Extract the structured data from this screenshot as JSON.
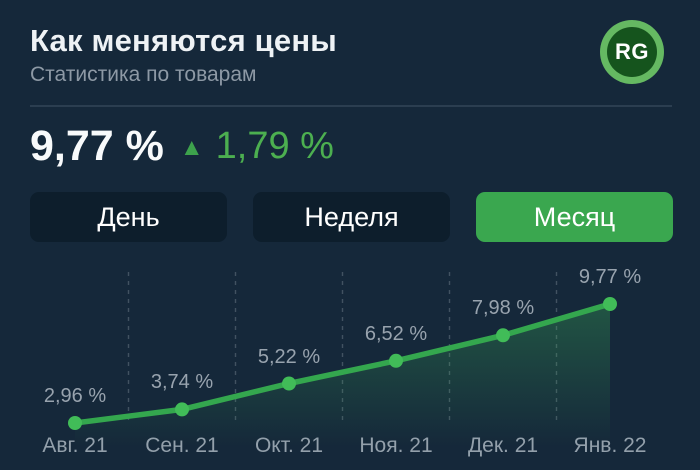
{
  "header": {
    "title": "Как меняются цены",
    "subtitle": "Статистика по товарам",
    "logo_text": "RG"
  },
  "summary": {
    "total_value": "9,77 %",
    "delta_value": "1,79 %",
    "delta_direction": "up",
    "up_arrow_icon": "▲"
  },
  "tabs": [
    {
      "label": "День",
      "active": false
    },
    {
      "label": "Неделя",
      "active": false
    },
    {
      "label": "Месяц",
      "active": true
    }
  ],
  "chart_data": {
    "type": "line",
    "title": "Как меняются цены",
    "xlabel": "",
    "ylabel": "",
    "categories": [
      "Авг. 21",
      "Сен. 21",
      "Окт. 21",
      "Ноя. 21",
      "Дек. 21",
      "Янв. 22"
    ],
    "values": [
      2.96,
      3.74,
      5.22,
      6.52,
      7.98,
      9.77
    ],
    "point_labels": [
      "2,96 %",
      "3,74 %",
      "5,22 %",
      "6,52 %",
      "7,98 %",
      "9,77 %"
    ],
    "ylim": [
      2.5,
      10.5
    ],
    "grid": "dashed vertical lines between categories",
    "legend_position": "none",
    "area_fill": "vertical green gradient fading down"
  },
  "colors": {
    "background": "#15283a",
    "accent_green": "#3aa74f",
    "line_green": "#34a74e",
    "marker_green": "#41bc58",
    "delta_green": "#4caf50",
    "text_primary": "#f2f5f7",
    "text_secondary": "#93a0ab",
    "tab_inactive_bg": "#0d1e2c",
    "divider": "#2b3e50",
    "logo_ring": "#65b962",
    "logo_core": "#15541d"
  }
}
